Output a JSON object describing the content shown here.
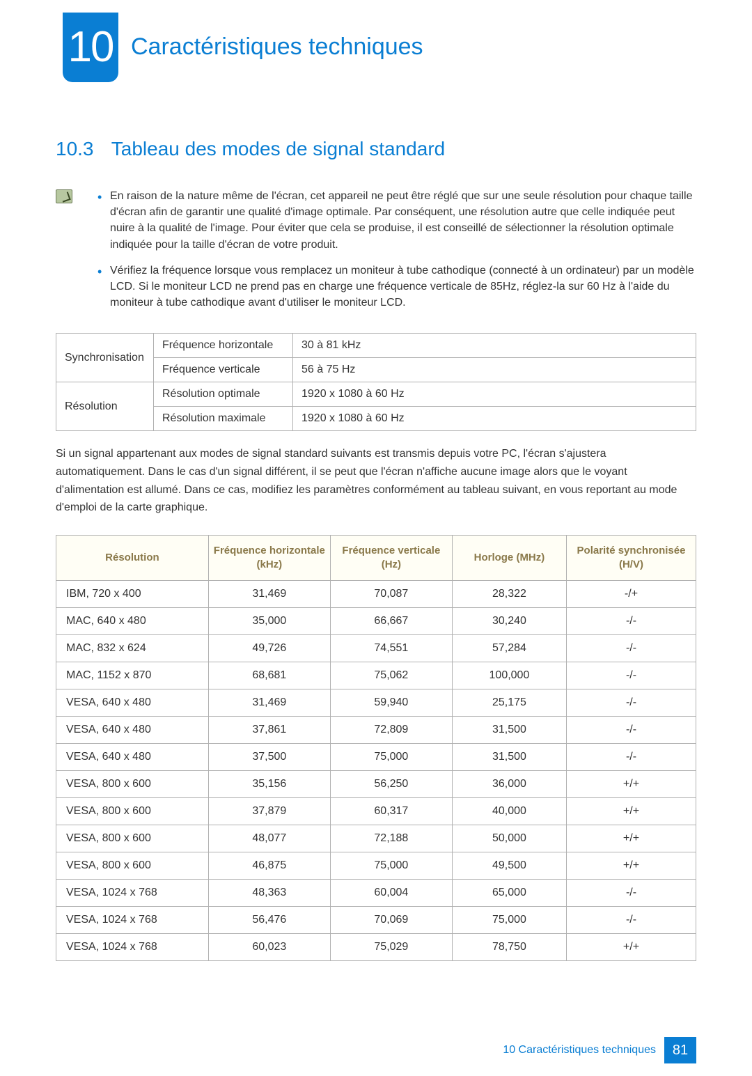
{
  "chapter": {
    "number": "10",
    "title": "Caractéristiques techniques"
  },
  "section": {
    "number": "10.3",
    "title": "Tableau des modes de signal standard"
  },
  "notes": [
    "En raison de la nature même de l'écran, cet appareil ne peut être réglé que sur une seule résolution pour chaque taille d'écran afin de garantir une qualité d'image optimale. Par conséquent, une résolution autre que celle indiquée peut nuire à la qualité de l'image. Pour éviter que cela se produise, il est conseillé de sélectionner la résolution optimale indiquée pour la taille d'écran de votre produit.",
    "Vérifiez la fréquence lorsque vous remplacez un moniteur à tube cathodique (connecté à un ordinateur) par un modèle LCD. Si le moniteur LCD ne prend pas en charge une fréquence verticale de 85Hz, réglez-la sur 60 Hz à l'aide du moniteur à tube cathodique avant d'utiliser le moniteur LCD."
  ],
  "spec_table": {
    "rows": [
      [
        "Synchronisation",
        "Fréquence horizontale",
        "30 à 81 kHz"
      ],
      [
        "",
        "Fréquence verticale",
        "56 à 75 Hz"
      ],
      [
        "Résolution",
        "Résolution optimale",
        "1920 x 1080 à 60 Hz"
      ],
      [
        "",
        "Résolution maximale",
        "1920 x 1080 à 60 Hz"
      ]
    ]
  },
  "paragraph": "Si un signal appartenant aux modes de signal standard suivants est transmis depuis votre PC, l'écran s'ajustera automatiquement. Dans le cas d'un signal différent, il se peut que l'écran n'affiche aucune image alors que le voyant d'alimentation est allumé. Dans ce cas, modifiez les paramètres conformément au tableau suivant, en vous reportant au mode d'emploi de la carte graphique.",
  "modes_table": {
    "headers": [
      "Résolution",
      "Fréquence horizontale (kHz)",
      "Fréquence verticale (Hz)",
      "Horloge (MHz)",
      "Polarité synchronisée (H/V)"
    ],
    "header_bg": "#fffef5",
    "header_color": "#8a794a",
    "border_color": "#b0b0b0",
    "rows": [
      [
        "IBM, 720 x 400",
        "31,469",
        "70,087",
        "28,322",
        "-/+"
      ],
      [
        "MAC, 640 x 480",
        "35,000",
        "66,667",
        "30,240",
        "-/-"
      ],
      [
        "MAC, 832 x 624",
        "49,726",
        "74,551",
        "57,284",
        "-/-"
      ],
      [
        "MAC, 1152 x 870",
        "68,681",
        "75,062",
        "100,000",
        "-/-"
      ],
      [
        "VESA, 640 x 480",
        "31,469",
        "59,940",
        "25,175",
        "-/-"
      ],
      [
        "VESA, 640 x 480",
        "37,861",
        "72,809",
        "31,500",
        "-/-"
      ],
      [
        "VESA, 640 x 480",
        "37,500",
        "75,000",
        "31,500",
        "-/-"
      ],
      [
        "VESA, 800 x 600",
        "35,156",
        "56,250",
        "36,000",
        "+/+"
      ],
      [
        "VESA, 800 x 600",
        "37,879",
        "60,317",
        "40,000",
        "+/+"
      ],
      [
        "VESA, 800 x 600",
        "48,077",
        "72,188",
        "50,000",
        "+/+"
      ],
      [
        "VESA, 800 x 600",
        "46,875",
        "75,000",
        "49,500",
        "+/+"
      ],
      [
        "VESA, 1024 x 768",
        "48,363",
        "60,004",
        "65,000",
        "-/-"
      ],
      [
        "VESA, 1024 x 768",
        "56,476",
        "70,069",
        "75,000",
        "-/-"
      ],
      [
        "VESA, 1024 x 768",
        "60,023",
        "75,029",
        "78,750",
        "+/+"
      ]
    ]
  },
  "footer": {
    "text": "10 Caractéristiques techniques",
    "page": "81"
  },
  "colors": {
    "accent": "#0a7ed3",
    "header_text": "#8a794a",
    "table_header_bg": "#fffef5"
  }
}
